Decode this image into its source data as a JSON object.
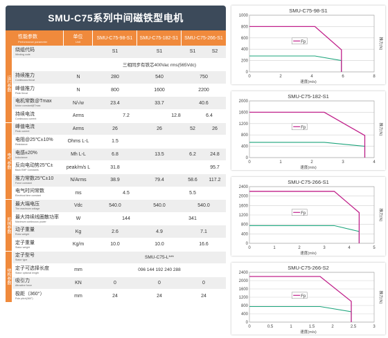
{
  "title": "SMU-C75系列中间磁铁型电机",
  "header": {
    "param_zh": "性能参数",
    "param_en": "Performance parameter",
    "unit_zh": "单位",
    "unit_en": "Unit",
    "models": [
      "SMU-C75-98-S1",
      "SMU-C75-182-S1",
      "SMU-C75-266-S1"
    ]
  },
  "side_groups": [
    "运行参数",
    "电气参数",
    "机械参数",
    "结构参数"
  ],
  "rows": [
    {
      "zh": "绕组代码",
      "en": "Winding code",
      "unit": "",
      "v": [
        "S1",
        "S1",
        "S1",
        "S2"
      ]
    },
    {
      "zh": "",
      "en": "",
      "unit": "",
      "span": "三相同步有铁芯400Vac rms(565Vdc)"
    },
    {
      "zh": "持续推力",
      "en": "Continuous thrust",
      "unit": "N",
      "v": [
        "280",
        "540",
        "750"
      ]
    },
    {
      "zh": "峰值推力",
      "en": "Peak thrust",
      "unit": "N",
      "v": [
        "800",
        "1600",
        "2200"
      ]
    },
    {
      "zh": "电机常数@Tmax",
      "en": "Motor constant@Tmax",
      "unit": "N/√w",
      "v": [
        "23.4",
        "33.7",
        "40.6"
      ]
    },
    {
      "zh": "持续电流",
      "en": "Continuous current",
      "unit": "Arms",
      "v": [
        "7.2",
        "12.8",
        "6.4"
      ],
      "split": true
    },
    {
      "zh": "峰值电流",
      "en": "Peak current",
      "unit": "Arms",
      "v": [
        "26",
        "26",
        "52",
        "26"
      ]
    },
    {
      "zh": "电阻@25℃±10%",
      "en": "Resistance",
      "unit": "Ohms L-L",
      "v": [
        "1.5",
        "",
        ""
      ]
    },
    {
      "zh": "电感±20%",
      "en": "Inductance",
      "unit": "Mh L-L",
      "v": [
        "6.8",
        "13.5",
        "6.2",
        "24.8"
      ]
    },
    {
      "zh": "反向电动势25℃±",
      "en": "Back EMF Constants",
      "unit": "peak/m/s L",
      "v": [
        "31.8",
        "",
        "",
        "95.7"
      ]
    },
    {
      "zh": "推力常数25℃±10",
      "en": "Force constant",
      "unit": "N/Arms",
      "v": [
        "38.9",
        "79.4",
        "58.6",
        "117.2"
      ]
    },
    {
      "zh": "电气时间常数",
      "en": "Electrical time constant",
      "unit": "ms",
      "v": [
        "4.5",
        "5.5"
      ]
    },
    {
      "zh": "最大端电压",
      "en": "The maximum voltage",
      "unit": "Vdc",
      "v": [
        "540.0",
        "540.0",
        "540.0"
      ]
    },
    {
      "zh": "最大持续线圈散功率",
      "en": "Maximum continuous power",
      "unit": "W",
      "v": [
        "144",
        "341"
      ]
    },
    {
      "zh": "动子重量",
      "en": "Rotor weight",
      "unit": "Kg",
      "v": [
        "2.6",
        "4.9",
        "7.1"
      ]
    },
    {
      "zh": "定子重量",
      "en": "Stator weight",
      "unit": "Kg/m",
      "v": [
        "10.0",
        "10.0",
        "16.6"
      ]
    },
    {
      "zh": "定子型号",
      "en": "Stator type",
      "unit": "",
      "span": "SMU-C75-L***"
    },
    {
      "zh": "定子可选择长度",
      "en": "Stator optional length",
      "unit": "mm",
      "span": "096 144 192 240 288"
    },
    {
      "zh": "吸引力",
      "en": "Attractive force",
      "unit": "KN",
      "v": [
        "0",
        "0",
        "0"
      ]
    },
    {
      "zh": "极距（360°）",
      "en": "Pole pitch(360°)",
      "unit": "mm",
      "v": [
        "24",
        "24",
        "24"
      ]
    }
  ],
  "charts": [
    {
      "title": "SMU-C75-98-S1",
      "ylabel": "推力(N)",
      "xlabel": "速度(m/s)",
      "legend": "Fp",
      "yticks": [
        "1000",
        "800",
        "600",
        "400",
        "200",
        "0"
      ],
      "xticks": [
        "0",
        "2",
        "4",
        "6",
        "8"
      ],
      "ymax": 1000,
      "xmax": 8,
      "peak": [
        [
          0,
          800
        ],
        [
          4.2,
          800
        ],
        [
          5.9,
          390
        ],
        [
          5.9,
          0
        ]
      ],
      "cont": [
        [
          0,
          280
        ],
        [
          4.2,
          280
        ],
        [
          5.9,
          200
        ],
        [
          5.9,
          0
        ]
      ]
    },
    {
      "title": "SMU-C75-182-S1",
      "ylabel": "推力(N)",
      "xlabel": "速度(m/s)",
      "legend": "Fp",
      "yticks": [
        "2000",
        "1600",
        "1200",
        "800",
        "400",
        "0"
      ],
      "xticks": [
        "0",
        "1",
        "2",
        "3",
        "4"
      ],
      "ymax": 2000,
      "xmax": 4,
      "peak": [
        [
          0,
          1600
        ],
        [
          2.4,
          1600
        ],
        [
          3.7,
          780
        ],
        [
          3.7,
          0
        ]
      ],
      "cont": [
        [
          0,
          540
        ],
        [
          2.4,
          540
        ],
        [
          3.7,
          400
        ],
        [
          3.7,
          0
        ]
      ]
    },
    {
      "title": "SMU-C75-266-S1",
      "ylabel": "推力(N)",
      "xlabel": "速度(m/s)",
      "legend": "Fp",
      "yticks": [
        "2400",
        "2000",
        "1600",
        "1200",
        "800",
        "400",
        "0"
      ],
      "xticks": [
        "0",
        "1",
        "2",
        "3",
        "4",
        "5"
      ],
      "ymax": 2400,
      "xmax": 5,
      "peak": [
        [
          0,
          2200
        ],
        [
          3.4,
          2200
        ],
        [
          4.4,
          1300
        ],
        [
          4.4,
          0
        ]
      ],
      "cont": [
        [
          0,
          750
        ],
        [
          3.4,
          750
        ],
        [
          4.4,
          500
        ],
        [
          4.4,
          0
        ]
      ]
    },
    {
      "title": "SMU-C75-266-S2",
      "ylabel": "推力(N)",
      "xlabel": "速度(m/s)",
      "legend": "Fp",
      "yticks": [
        "2400",
        "2000",
        "1600",
        "1200",
        "800",
        "400",
        "0"
      ],
      "xticks": [
        "0",
        "0.5",
        "1",
        "1.5",
        "2",
        "2.5",
        "3"
      ],
      "ymax": 2400,
      "xmax": 3,
      "peak": [
        [
          0,
          2200
        ],
        [
          1.7,
          2200
        ],
        [
          2.45,
          1000
        ],
        [
          2.45,
          0
        ]
      ],
      "cont": [
        [
          0,
          750
        ],
        [
          1.7,
          750
        ],
        [
          2.45,
          500
        ],
        [
          2.45,
          0
        ]
      ]
    }
  ]
}
